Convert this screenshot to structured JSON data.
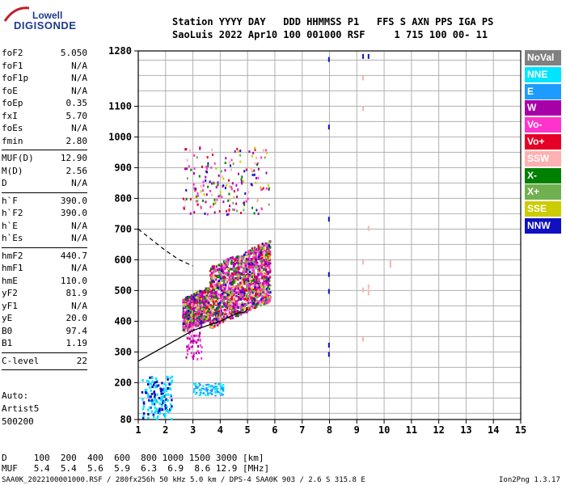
{
  "logo": {
    "line1": "Lowell",
    "line2": "DIGISONDE"
  },
  "header": {
    "line1": "Station YYYY DAY   DDD HHMMSS P1   FFS S AXN PPS IGA PS",
    "line2": "SaoLuis 2022 Apr10 100 001000 RSF     1 715 100 00- 11"
  },
  "params": [
    [
      {
        "k": "foF2",
        "v": "5.050"
      },
      {
        "k": "foF1",
        "v": "N/A"
      },
      {
        "k": "foF1p",
        "v": "N/A"
      },
      {
        "k": "foE",
        "v": "N/A"
      },
      {
        "k": "foEp",
        "v": "0.35"
      },
      {
        "k": "fxI",
        "v": "5.70"
      },
      {
        "k": "foEs",
        "v": "N/A"
      },
      {
        "k": "fmin",
        "v": "2.80"
      }
    ],
    [
      {
        "k": "MUF(D)",
        "v": "12.90"
      },
      {
        "k": "M(D)",
        "v": "2.56"
      },
      {
        "k": "D",
        "v": "N/A"
      }
    ],
    [
      {
        "k": "h`F",
        "v": "390.0"
      },
      {
        "k": "h`F2",
        "v": "390.0"
      },
      {
        "k": "h`E",
        "v": "N/A"
      },
      {
        "k": "h`Es",
        "v": "N/A"
      }
    ],
    [
      {
        "k": "hmF2",
        "v": "440.7"
      },
      {
        "k": "hmF1",
        "v": "N/A"
      },
      {
        "k": "hmE",
        "v": "110.0"
      },
      {
        "k": "yF2",
        "v": "81.9"
      },
      {
        "k": "yF1",
        "v": "N/A"
      },
      {
        "k": "yE",
        "v": "20.0"
      },
      {
        "k": "B0",
        "v": "97.4"
      },
      {
        "k": "B1",
        "v": "1.19"
      }
    ],
    [
      {
        "k": "C-level",
        "v": "22"
      }
    ]
  ],
  "auto": {
    "line1": "Auto:",
    "line2": "Artist5",
    "line3": "500200"
  },
  "legend": [
    {
      "label": "NoVal",
      "color": "#808080"
    },
    {
      "label": "NNE",
      "color": "#00e5ff"
    },
    {
      "label": "E",
      "color": "#1e9bff"
    },
    {
      "label": "W",
      "color": "#a800a8"
    },
    {
      "label": "Vo-",
      "color": "#ff33cc"
    },
    {
      "label": "Vo+",
      "color": "#e60026"
    },
    {
      "label": "SSW",
      "color": "#ffb0b0"
    },
    {
      "label": "X-",
      "color": "#008000"
    },
    {
      "label": "X+",
      "color": "#70b050"
    },
    {
      "label": "SSE",
      "color": "#cccc00"
    },
    {
      "label": "NNW",
      "color": "#1010c0"
    }
  ],
  "bottom": {
    "d_line": "D     100  200  400  600  800 1000 1500 3000 [km]",
    "muf_line": "MUF   5.4  5.4  5.6  5.9  6.3  6.9  8.6 12.9 [MHz]"
  },
  "footer": {
    "left": "SAA0K_2022100001000.RSF / 280fx256h 50 kHz 5.0 km / DPS-4 SAA0K 903 / 2.6 S 315.8 E",
    "right": "Ion2Png 1.3.17"
  },
  "chart_data": {
    "type": "scatter",
    "xlabel": "",
    "ylabel": "",
    "xlim": [
      1,
      15
    ],
    "ylim": [
      80,
      1280
    ],
    "x_ticks": [
      1,
      2,
      3,
      4,
      5,
      6,
      7,
      8,
      9,
      10,
      11,
      12,
      13,
      14,
      15
    ],
    "y_ticks": [
      80,
      200,
      300,
      400,
      500,
      600,
      700,
      800,
      900,
      1000,
      1100,
      1280
    ],
    "grid": true,
    "series": [
      {
        "name": "trace O F2 (cloud)",
        "points": [
          [
            2.5,
            390
          ],
          [
            3.0,
            430
          ],
          [
            3.5,
            470
          ],
          [
            4.0,
            490
          ],
          [
            4.5,
            510
          ],
          [
            5.0,
            530
          ],
          [
            5.5,
            560
          ]
        ]
      },
      {
        "name": "trace low E region",
        "points": [
          [
            1.5,
            120
          ],
          [
            2.0,
            160
          ],
          [
            1.8,
            90
          ]
        ]
      },
      {
        "name": "trace E (blue streaks)",
        "points": [
          [
            3.2,
            170
          ],
          [
            3.6,
            180
          ],
          [
            3.9,
            165
          ]
        ]
      }
    ],
    "profile_line": {
      "points": [
        [
          1.0,
          270
        ],
        [
          2.0,
          320
        ],
        [
          3.0,
          370
        ],
        [
          4.0,
          400
        ],
        [
          4.6,
          425
        ],
        [
          4.9,
          430
        ],
        [
          5.0,
          440
        ],
        [
          5.0,
          445
        ]
      ]
    },
    "dashed_line": {
      "points": [
        [
          1.0,
          700
        ],
        [
          2.0,
          630
        ],
        [
          2.5,
          600
        ],
        [
          3.0,
          580
        ]
      ]
    }
  }
}
